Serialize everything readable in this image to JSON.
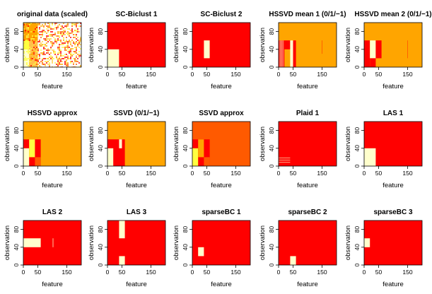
{
  "figure": {
    "n_features": 200,
    "n_observations": 100,
    "colors": {
      "red": "#ff0000",
      "dark_orange": "#ff5a00",
      "orange": "#ffa500",
      "yellow": "#ffff40",
      "cream": "#ffffcc",
      "light_orange": "#ffc04a"
    },
    "panels": [
      {
        "title": "original data (scaled)",
        "xlabel": "feature",
        "ylabel": "observation",
        "kind": "noise",
        "chart_data": {
          "type": "heatmap",
          "xlim": [
            0,
            200
          ],
          "ylim": [
            0,
            100
          ],
          "xticks": [
            0,
            50,
            150
          ],
          "yticks": [
            0,
            40,
            80
          ],
          "rects": [
            {
              "x": [
                0,
                50
              ],
              "y": [
                0,
                100
              ],
              "color": "orange"
            },
            {
              "x": [
                0,
                20
              ],
              "y": [
                0,
                40
              ],
              "color": "cream"
            },
            {
              "x": [
                0,
                20
              ],
              "y": [
                40,
                60
              ],
              "color": "yellow"
            },
            {
              "x": [
                20,
                50
              ],
              "y": [
                0,
                60
              ],
              "color": "light_orange"
            }
          ]
        }
      },
      {
        "title": "SC-Biclust 1",
        "xlabel": "feature",
        "ylabel": "observation",
        "bg": "red",
        "chart_data": {
          "type": "heatmap",
          "xlim": [
            0,
            200
          ],
          "ylim": [
            0,
            100
          ],
          "xticks": [
            0,
            50,
            150
          ],
          "yticks": [
            0,
            40,
            80
          ],
          "rects": [
            {
              "x": [
                0,
                40
              ],
              "y": [
                0,
                40
              ],
              "color": "cream"
            }
          ]
        }
      },
      {
        "title": "SC-Biclust 2",
        "xlabel": "feature",
        "ylabel": "observation",
        "bg": "red",
        "chart_data": {
          "type": "heatmap",
          "xlim": [
            0,
            200
          ],
          "ylim": [
            0,
            100
          ],
          "xticks": [
            0,
            50,
            150
          ],
          "yticks": [
            0,
            40,
            80
          ],
          "rects": [
            {
              "x": [
                40,
                60
              ],
              "y": [
                20,
                60
              ],
              "color": "cream"
            }
          ]
        }
      },
      {
        "title": "HSSVD mean 1 (0/1/−1)",
        "xlabel": "feature",
        "ylabel": "observation",
        "bg": "orange",
        "chart_data": {
          "type": "heatmap",
          "xlim": [
            0,
            200
          ],
          "ylim": [
            0,
            100
          ],
          "xticks": [
            0,
            50,
            150
          ],
          "yticks": [
            0,
            40,
            80
          ],
          "rects": [
            {
              "x": [
                0,
                20
              ],
              "y": [
                0,
                60
              ],
              "color": "red"
            },
            {
              "x": [
                20,
                40
              ],
              "y": [
                40,
                60
              ],
              "color": "red"
            },
            {
              "x": [
                40,
                50
              ],
              "y": [
                0,
                60
              ],
              "color": "cream"
            },
            {
              "x": [
                50,
                60
              ],
              "y": [
                0,
                60
              ],
              "color": "red"
            },
            {
              "x": [
                4,
                6
              ],
              "y": [
                0,
                60
              ],
              "color": "cream"
            },
            {
              "x": [
                9,
                11
              ],
              "y": [
                0,
                60
              ],
              "color": "cream"
            },
            {
              "x": [
                14,
                16
              ],
              "y": [
                0,
                60
              ],
              "color": "cream"
            },
            {
              "x": [
                150,
                151
              ],
              "y": [
                30,
                60
              ],
              "color": "red"
            }
          ]
        }
      },
      {
        "title": "HSSVD mean 2 (0/1/−1)",
        "xlabel": "feature",
        "ylabel": "observation",
        "bg": "orange",
        "chart_data": {
          "type": "heatmap",
          "xlim": [
            0,
            200
          ],
          "ylim": [
            0,
            100
          ],
          "xticks": [
            0,
            50,
            150
          ],
          "yticks": [
            0,
            40,
            80
          ],
          "rects": [
            {
              "x": [
                0,
                20
              ],
              "y": [
                0,
                60
              ],
              "color": "red"
            },
            {
              "x": [
                20,
                40
              ],
              "y": [
                20,
                60
              ],
              "color": "cream"
            },
            {
              "x": [
                20,
                40
              ],
              "y": [
                0,
                20
              ],
              "color": "red"
            },
            {
              "x": [
                40,
                60
              ],
              "y": [
                20,
                60
              ],
              "color": "red"
            },
            {
              "x": [
                150,
                151
              ],
              "y": [
                20,
                60
              ],
              "color": "red"
            }
          ]
        }
      },
      {
        "title": "HSSVD approx",
        "xlabel": "feature",
        "ylabel": "observation",
        "bg": "orange",
        "chart_data": {
          "type": "heatmap",
          "xlim": [
            0,
            200
          ],
          "ylim": [
            0,
            100
          ],
          "xticks": [
            0,
            50,
            150
          ],
          "yticks": [
            0,
            40,
            80
          ],
          "rects": [
            {
              "x": [
                0,
                60
              ],
              "y": [
                0,
                60
              ],
              "color": "red"
            },
            {
              "x": [
                0,
                20
              ],
              "y": [
                0,
                40
              ],
              "color": "cream"
            },
            {
              "x": [
                20,
                40
              ],
              "y": [
                20,
                60
              ],
              "color": "yellow"
            },
            {
              "x": [
                40,
                60
              ],
              "y": [
                0,
                20
              ],
              "color": "dark_orange"
            }
          ]
        }
      },
      {
        "title": "SSVD (0/1/−1)",
        "xlabel": "feature",
        "ylabel": "observation",
        "bg": "orange",
        "chart_data": {
          "type": "heatmap",
          "xlim": [
            0,
            200
          ],
          "ylim": [
            0,
            100
          ],
          "xticks": [
            0,
            50,
            150
          ],
          "yticks": [
            0,
            40,
            80
          ],
          "rects": [
            {
              "x": [
                0,
                60
              ],
              "y": [
                0,
                60
              ],
              "color": "red"
            },
            {
              "x": [
                0,
                20
              ],
              "y": [
                0,
                40
              ],
              "color": "cream"
            },
            {
              "x": [
                40,
                50
              ],
              "y": [
                40,
                60
              ],
              "color": "cream"
            }
          ]
        }
      },
      {
        "title": "SSVD approx",
        "xlabel": "feature",
        "ylabel": "observation",
        "bg": "dark_orange",
        "chart_data": {
          "type": "heatmap",
          "xlim": [
            0,
            200
          ],
          "ylim": [
            0,
            100
          ],
          "xticks": [
            0,
            50,
            150
          ],
          "yticks": [
            0,
            40,
            80
          ],
          "rects": [
            {
              "x": [
                0,
                60
              ],
              "y": [
                0,
                60
              ],
              "color": "red"
            },
            {
              "x": [
                0,
                20
              ],
              "y": [
                0,
                40
              ],
              "color": "yellow"
            },
            {
              "x": [
                20,
                40
              ],
              "y": [
                20,
                60
              ],
              "color": "orange"
            },
            {
              "x": [
                40,
                60
              ],
              "y": [
                0,
                20
              ],
              "color": "dark_orange"
            }
          ]
        }
      },
      {
        "title": "Plaid 1",
        "xlabel": "feature",
        "ylabel": "observation",
        "bg": "red",
        "chart_data": {
          "type": "heatmap",
          "xlim": [
            0,
            200
          ],
          "ylim": [
            0,
            100
          ],
          "xticks": [
            0,
            50,
            150
          ],
          "yticks": [
            0,
            40,
            80
          ],
          "rects": [
            {
              "x": [
                0,
                40
              ],
              "y": [
                8,
                9
              ],
              "color": "cream"
            },
            {
              "x": [
                0,
                40
              ],
              "y": [
                13,
                14
              ],
              "color": "cream"
            },
            {
              "x": [
                0,
                40
              ],
              "y": [
                18,
                19
              ],
              "color": "cream"
            }
          ]
        }
      },
      {
        "title": "LAS 1",
        "xlabel": "feature",
        "ylabel": "observation",
        "bg": "red",
        "chart_data": {
          "type": "heatmap",
          "xlim": [
            0,
            200
          ],
          "ylim": [
            0,
            100
          ],
          "xticks": [
            0,
            50,
            150
          ],
          "yticks": [
            0,
            40,
            80
          ],
          "rects": [
            {
              "x": [
                0,
                40
              ],
              "y": [
                0,
                40
              ],
              "color": "cream"
            }
          ]
        }
      },
      {
        "title": "LAS 2",
        "xlabel": "feature",
        "ylabel": "observation",
        "bg": "red",
        "chart_data": {
          "type": "heatmap",
          "xlim": [
            0,
            200
          ],
          "ylim": [
            0,
            100
          ],
          "xticks": [
            0,
            50,
            150
          ],
          "yticks": [
            0,
            40,
            80
          ],
          "rects": [
            {
              "x": [
                0,
                60
              ],
              "y": [
                40,
                60
              ],
              "color": "cream"
            },
            {
              "x": [
                100,
                101
              ],
              "y": [
                40,
                60
              ],
              "color": "cream"
            },
            {
              "x": [
                104,
                105
              ],
              "y": [
                40,
                60
              ],
              "color": "cream"
            }
          ]
        }
      },
      {
        "title": "LAS 3",
        "xlabel": "feature",
        "ylabel": "observation",
        "bg": "red",
        "chart_data": {
          "type": "heatmap",
          "xlim": [
            0,
            200
          ],
          "ylim": [
            0,
            100
          ],
          "xticks": [
            0,
            50,
            150
          ],
          "yticks": [
            0,
            40,
            80
          ],
          "rects": [
            {
              "x": [
                40,
                60
              ],
              "y": [
                60,
                100
              ],
              "color": "cream"
            },
            {
              "x": [
                40,
                60
              ],
              "y": [
                0,
                20
              ],
              "color": "cream"
            }
          ]
        }
      },
      {
        "title": "sparseBC 1",
        "xlabel": "feature",
        "ylabel": "observation",
        "bg": "red",
        "chart_data": {
          "type": "heatmap",
          "xlim": [
            0,
            200
          ],
          "ylim": [
            0,
            100
          ],
          "xticks": [
            0,
            50,
            150
          ],
          "yticks": [
            0,
            40,
            80
          ],
          "rects": [
            {
              "x": [
                20,
                40
              ],
              "y": [
                20,
                40
              ],
              "color": "cream"
            }
          ]
        }
      },
      {
        "title": "sparseBC 2",
        "xlabel": "feature",
        "ylabel": "observation",
        "bg": "red",
        "chart_data": {
          "type": "heatmap",
          "xlim": [
            0,
            200
          ],
          "ylim": [
            0,
            100
          ],
          "xticks": [
            0,
            50,
            150
          ],
          "yticks": [
            0,
            40,
            80
          ],
          "rects": [
            {
              "x": [
                40,
                60
              ],
              "y": [
                0,
                20
              ],
              "color": "cream"
            }
          ]
        }
      },
      {
        "title": "sparseBC 3",
        "xlabel": "feature",
        "ylabel": "observation",
        "bg": "red",
        "chart_data": {
          "type": "heatmap",
          "xlim": [
            0,
            200
          ],
          "ylim": [
            0,
            100
          ],
          "xticks": [
            0,
            50,
            150
          ],
          "yticks": [
            0,
            40,
            80
          ],
          "rects": [
            {
              "x": [
                0,
                20
              ],
              "y": [
                40,
                60
              ],
              "color": "cream"
            }
          ]
        }
      }
    ]
  }
}
